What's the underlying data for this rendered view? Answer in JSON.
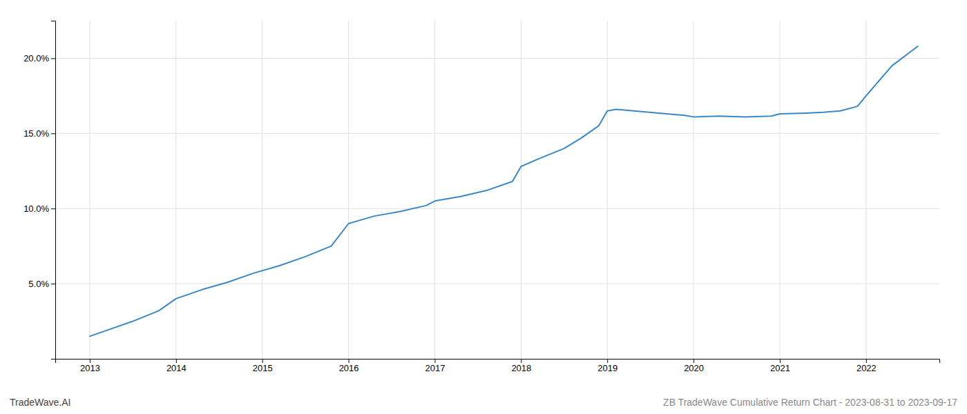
{
  "chart_data": {
    "type": "line",
    "x": [
      2013.0,
      2013.2,
      2013.5,
      2013.8,
      2014.0,
      2014.3,
      2014.6,
      2014.9,
      2015.2,
      2015.5,
      2015.8,
      2016.0,
      2016.3,
      2016.6,
      2016.9,
      2017.0,
      2017.3,
      2017.6,
      2017.9,
      2018.0,
      2018.2,
      2018.5,
      2018.7,
      2018.9,
      2019.0,
      2019.1,
      2019.2,
      2019.4,
      2019.6,
      2019.9,
      2020.0,
      2020.3,
      2020.6,
      2020.9,
      2021.0,
      2021.3,
      2021.5,
      2021.7,
      2021.9,
      2022.0,
      2022.3,
      2022.6
    ],
    "values": [
      1.5,
      1.9,
      2.5,
      3.2,
      4.0,
      4.6,
      5.1,
      5.7,
      6.2,
      6.8,
      7.5,
      9.0,
      9.5,
      9.8,
      10.2,
      10.5,
      10.8,
      11.2,
      11.8,
      12.8,
      13.3,
      14.0,
      14.7,
      15.5,
      16.5,
      16.6,
      16.55,
      16.45,
      16.35,
      16.2,
      16.1,
      16.15,
      16.1,
      16.15,
      16.3,
      16.35,
      16.4,
      16.5,
      16.8,
      17.5,
      19.5,
      20.8
    ],
    "color": "#3a87c8",
    "xlim": [
      2012.6,
      2022.85
    ],
    "ylim": [
      0,
      22.5
    ],
    "xticks": [
      2013,
      2014,
      2015,
      2016,
      2017,
      2018,
      2019,
      2020,
      2021,
      2022
    ],
    "yticks": [
      {
        "value": 5.0,
        "label": "5.0%"
      },
      {
        "value": 10.0,
        "label": "10.0%"
      },
      {
        "value": 15.0,
        "label": "15.0%"
      },
      {
        "value": 20.0,
        "label": "20.0%"
      }
    ],
    "grid": true,
    "annotations": [
      "TradeWave.AI",
      "ZB TradeWave Cumulative Return Chart - 2023-08-31 to 2023-09-17"
    ]
  }
}
